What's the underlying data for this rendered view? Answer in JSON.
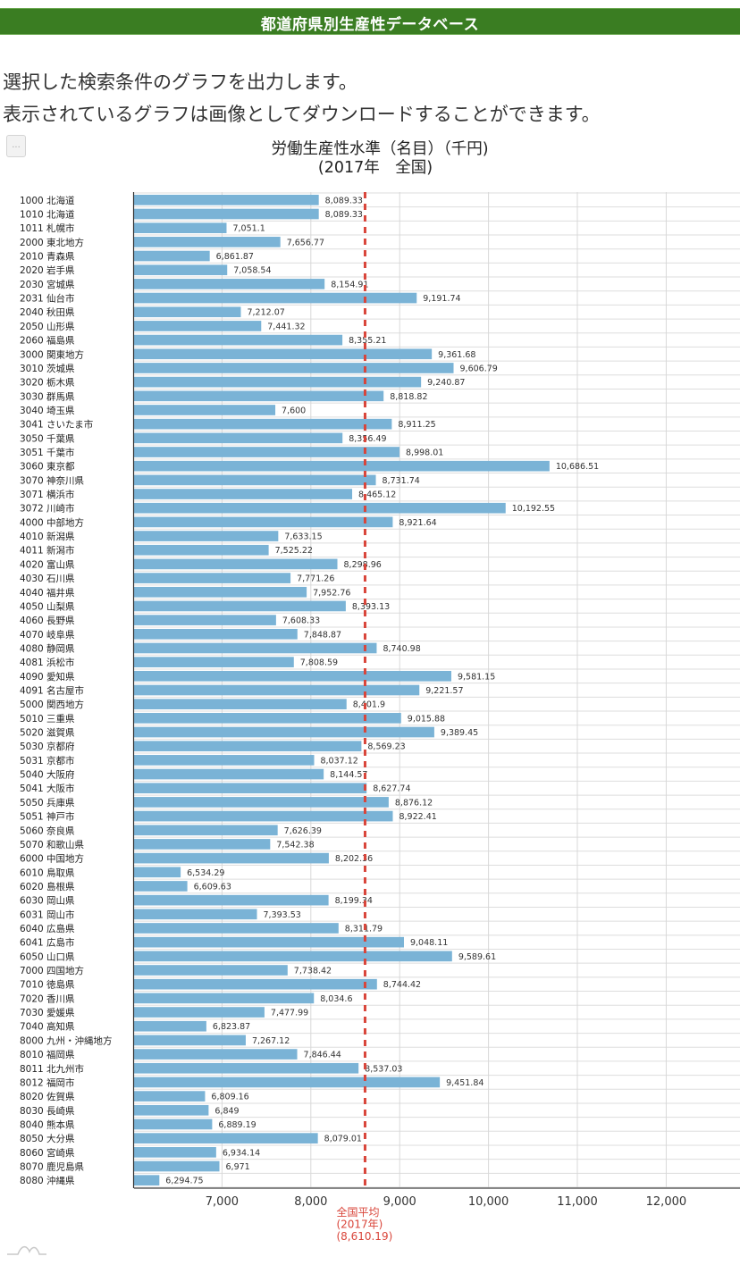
{
  "header": {
    "title": "都道府県別生産性データベース",
    "color": "#3a7d22"
  },
  "intro": {
    "line1": "選択した検索条件のグラフを出力します。",
    "line2": "表示されているグラフは画像としてダウンロードすることができます。"
  },
  "menu_button": {
    "label": "..."
  },
  "chart_data": {
    "type": "bar",
    "orientation": "horizontal",
    "title": "労働生産性水準（名目）（千円)",
    "subtitle": "(2017年　全国)",
    "xlabel": "",
    "ylabel": "",
    "xlim": [
      6010,
      12840
    ],
    "xticks": [
      7000,
      8000,
      9000,
      10000,
      11000,
      12000
    ],
    "xtick_labels": [
      "7,000",
      "8,000",
      "9,000",
      "10,000",
      "11,000",
      "12,000"
    ],
    "grid": true,
    "bar_color": "#7ab3d6",
    "reference_line": {
      "value": 8610.19,
      "color": "#d9453a",
      "style": "dashed",
      "label_lines": [
        "全国平均",
        "(2017年)",
        "(8,610.19)"
      ]
    },
    "categories": [
      "1000 北海道",
      "1010 北海道",
      "1011 札幌市",
      "2000 東北地方",
      "2010 青森県",
      "2020 岩手県",
      "2030 宮城県",
      "2031 仙台市",
      "2040 秋田県",
      "2050 山形県",
      "2060 福島県",
      "3000 関東地方",
      "3010 茨城県",
      "3020 栃木県",
      "3030 群馬県",
      "3040 埼玉県",
      "3041 さいたま市",
      "3050 千葉県",
      "3051 千葉市",
      "3060 東京都",
      "3070 神奈川県",
      "3071 横浜市",
      "3072 川崎市",
      "4000 中部地方",
      "4010 新潟県",
      "4011 新潟市",
      "4020 富山県",
      "4030 石川県",
      "4040 福井県",
      "4050 山梨県",
      "4060 長野県",
      "4070 岐阜県",
      "4080 静岡県",
      "4081 浜松市",
      "4090 愛知県",
      "4091 名古屋市",
      "5000 関西地方",
      "5010 三重県",
      "5020 滋賀県",
      "5030 京都府",
      "5031 京都市",
      "5040 大阪府",
      "5041 大阪市",
      "5050 兵庫県",
      "5051 神戸市",
      "5060 奈良県",
      "5070 和歌山県",
      "6000 中国地方",
      "6010 鳥取県",
      "6020 島根県",
      "6030 岡山県",
      "6031 岡山市",
      "6040 広島県",
      "6041 広島市",
      "6050 山口県",
      "7000 四国地方",
      "7010 徳島県",
      "7020 香川県",
      "7030 愛媛県",
      "7040 高知県",
      "8000 九州・沖縄地方",
      "8010 福岡県",
      "8011 北九州市",
      "8012 福岡市",
      "8020 佐賀県",
      "8030 長崎県",
      "8040 熊本県",
      "8050 大分県",
      "8060 宮崎県",
      "8070 鹿児島県",
      "8080 沖縄県"
    ],
    "values": [
      8089.33,
      8089.33,
      7051.1,
      7656.77,
      6861.87,
      7058.54,
      8154.91,
      9191.74,
      7212.07,
      7441.32,
      8355.21,
      9361.68,
      9606.79,
      9240.87,
      8818.82,
      7600,
      8911.25,
      8356.49,
      8998.01,
      10686.51,
      8731.74,
      8465.12,
      10192.55,
      8921.64,
      7633.15,
      7525.22,
      8298.96,
      7771.26,
      7952.76,
      8393.13,
      7608.33,
      7848.87,
      8740.98,
      7808.59,
      9581.15,
      9221.57,
      8401.9,
      9015.88,
      9389.45,
      8569.23,
      8037.12,
      8144.57,
      8627.74,
      8876.12,
      8922.41,
      7626.39,
      7542.38,
      8202.36,
      6534.29,
      6609.63,
      8199.34,
      7393.53,
      8311.79,
      9048.11,
      9589.61,
      7738.42,
      8744.42,
      8034.6,
      7477.99,
      6823.87,
      7267.12,
      7846.44,
      8537.03,
      9451.84,
      6809.16,
      6849,
      6889.19,
      8079.01,
      6934.14,
      6971,
      6294.75
    ],
    "value_labels": [
      "8,089.33",
      "8,089.33",
      "7,051.1",
      "7,656.77",
      "6,861.87",
      "7,058.54",
      "8,154.91",
      "9,191.74",
      "7,212.07",
      "7,441.32",
      "8,355.21",
      "9,361.68",
      "9,606.79",
      "9,240.87",
      "8,818.82",
      "7,600",
      "8,911.25",
      "8,356.49",
      "8,998.01",
      "10,686.51",
      "8,731.74",
      "8,465.12",
      "10,192.55",
      "8,921.64",
      "7,633.15",
      "7,525.22",
      "8,298.96",
      "7,771.26",
      "7,952.76",
      "8,393.13",
      "7,608.33",
      "7,848.87",
      "8,740.98",
      "7,808.59",
      "9,581.15",
      "9,221.57",
      "8,401.9",
      "9,015.88",
      "9,389.45",
      "8,569.23",
      "8,037.12",
      "8,144.57",
      "8,627.74",
      "8,876.12",
      "8,922.41",
      "7,626.39",
      "7,542.38",
      "8,202.36",
      "6,534.29",
      "6,609.63",
      "8,199.34",
      "7,393.53",
      "8,311.79",
      "9,048.11",
      "9,589.61",
      "7,738.42",
      "8,744.42",
      "8,034.6",
      "7,477.99",
      "6,823.87",
      "7,267.12",
      "7,846.44",
      "8,537.03",
      "9,451.84",
      "6,809.16",
      "6,849",
      "6,889.19",
      "8,079.01",
      "6,934.14",
      "6,971",
      "6,294.75"
    ]
  },
  "footer": {
    "logo_icon": "mountain-logo-icon"
  }
}
